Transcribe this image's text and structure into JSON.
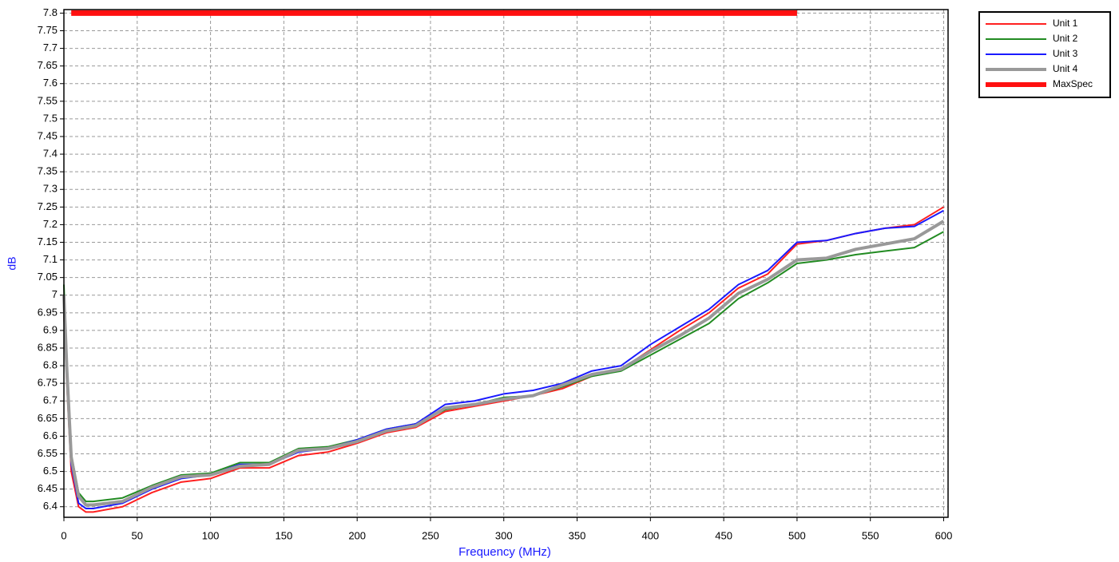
{
  "chart_data": {
    "type": "line",
    "xlabel": "Frequency (MHz)",
    "ylabel": "dB",
    "x": [
      0,
      2,
      5,
      10,
      15,
      20,
      40,
      60,
      80,
      100,
      120,
      140,
      160,
      180,
      200,
      220,
      240,
      260,
      280,
      300,
      320,
      340,
      360,
      380,
      400,
      420,
      440,
      460,
      480,
      500,
      520,
      540,
      560,
      580,
      600
    ],
    "series": [
      {
        "name": "Unit 1",
        "color": "#ff2020",
        "line_width": 2,
        "values": [
          6.95,
          6.75,
          6.5,
          6.4,
          6.385,
          6.385,
          6.4,
          6.44,
          6.47,
          6.48,
          6.51,
          6.51,
          6.545,
          6.555,
          6.58,
          6.61,
          6.625,
          6.67,
          6.685,
          6.7,
          6.715,
          6.735,
          6.77,
          6.79,
          6.845,
          6.9,
          6.95,
          7.02,
          7.06,
          7.145,
          7.155,
          7.175,
          7.19,
          7.2,
          7.25
        ]
      },
      {
        "name": "Unit 2",
        "color": "#228b22",
        "line_width": 2,
        "values": [
          7.03,
          6.8,
          6.55,
          6.44,
          6.415,
          6.415,
          6.425,
          6.46,
          6.49,
          6.495,
          6.525,
          6.525,
          6.565,
          6.57,
          6.59,
          6.62,
          6.635,
          6.675,
          6.69,
          6.71,
          6.715,
          6.74,
          6.77,
          6.785,
          6.83,
          6.875,
          6.92,
          6.99,
          7.035,
          7.09,
          7.1,
          7.115,
          7.125,
          7.135,
          7.18
        ]
      },
      {
        "name": "Unit 3",
        "color": "#1a1aff",
        "line_width": 2,
        "values": [
          6.98,
          6.78,
          6.52,
          6.41,
          6.395,
          6.395,
          6.41,
          6.45,
          6.48,
          6.49,
          6.52,
          6.52,
          6.555,
          6.565,
          6.59,
          6.62,
          6.635,
          6.69,
          6.7,
          6.72,
          6.73,
          6.75,
          6.785,
          6.8,
          6.86,
          6.91,
          6.96,
          7.03,
          7.07,
          7.15,
          7.155,
          7.175,
          7.19,
          7.195,
          7.24
        ]
      },
      {
        "name": "Unit 4",
        "color": "#999999",
        "line_width": 4,
        "values": [
          7.0,
          6.79,
          6.54,
          6.43,
          6.405,
          6.405,
          6.415,
          6.455,
          6.485,
          6.49,
          6.515,
          6.52,
          6.56,
          6.565,
          6.585,
          6.615,
          6.63,
          6.68,
          6.69,
          6.705,
          6.715,
          6.745,
          6.775,
          6.79,
          6.84,
          6.885,
          6.935,
          7.005,
          7.045,
          7.1,
          7.105,
          7.13,
          7.145,
          7.16,
          7.21
        ]
      },
      {
        "name": "MaxSpec",
        "color": "#ff1010",
        "line_width": 7,
        "x": [
          5,
          500
        ],
        "values": [
          7.8,
          7.8
        ]
      }
    ],
    "xlim": [
      0,
      603
    ],
    "ylim": [
      6.37,
      7.81
    ],
    "xticks": [
      0,
      50,
      100,
      150,
      200,
      250,
      300,
      350,
      400,
      450,
      500,
      550,
      600
    ],
    "yticks": [
      6.4,
      6.45,
      6.5,
      6.55,
      6.6,
      6.65,
      6.7,
      6.75,
      6.8,
      6.85,
      6.9,
      6.95,
      7,
      7.05,
      7.1,
      7.15,
      7.2,
      7.25,
      7.3,
      7.35,
      7.4,
      7.45,
      7.5,
      7.55,
      7.6,
      7.65,
      7.7,
      7.75,
      7.8
    ],
    "grid": true,
    "legend": "outside-top-right"
  }
}
